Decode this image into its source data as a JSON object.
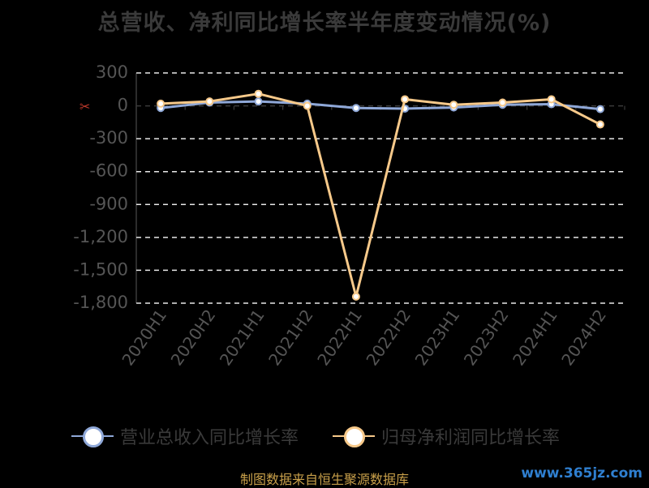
{
  "chart_data": {
    "type": "line",
    "title": "总营收、净利同比增长率半年度变动情况(%)",
    "categories": [
      "2020H1",
      "2020H2",
      "2021H1",
      "2021H2",
      "2022H1",
      "2022H2",
      "2023H1",
      "2023H2",
      "2024H1",
      "2024H2"
    ],
    "ylim": [
      -1800,
      300
    ],
    "yticks": [
      300,
      0,
      -300,
      -600,
      -900,
      -1200,
      -1500,
      -1800
    ],
    "ytick_labels": [
      "300",
      "0",
      "-300",
      "-600",
      "-900",
      "-1,200",
      "-1,500",
      "-1,800"
    ],
    "grid": true,
    "legend_position": "bottom",
    "series": [
      {
        "name": "营业总收入同比增长率",
        "values": [
          -20,
          30,
          40,
          20,
          -20,
          -25,
          -15,
          10,
          15,
          -30
        ],
        "color": "#8fa8d8"
      },
      {
        "name": "归母净利润同比增长率",
        "values": [
          20,
          40,
          110,
          0,
          -1740,
          60,
          10,
          30,
          60,
          -170
        ],
        "color": "#f7c98a"
      }
    ]
  },
  "source": "制图数据来自恒生聚源数据库",
  "watermark": "www.365jz.com"
}
